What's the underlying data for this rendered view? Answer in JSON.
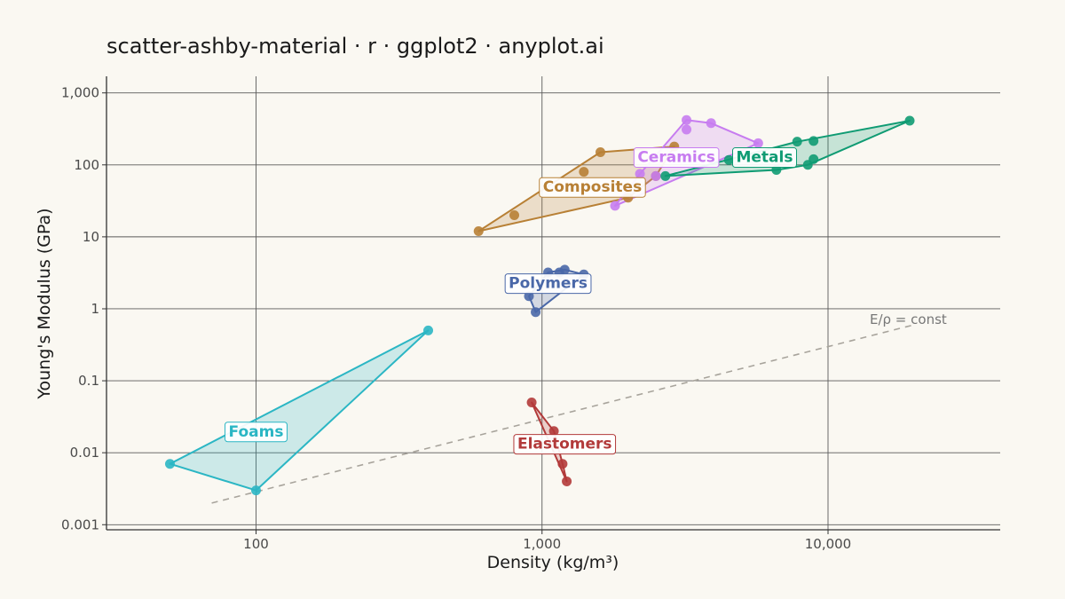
{
  "chart_data": {
    "type": "scatter",
    "title": "scatter-ashby-material · r · ggplot2 · anyplot.ai",
    "xlabel": "Density  (kg/m³)",
    "ylabel": "Young's Modulus  (GPa)",
    "x_scale": "log10",
    "y_scale": "log10",
    "xlim": [
      30,
      40000
    ],
    "ylim": [
      0.00085,
      1700
    ],
    "x_ticks": [
      {
        "value": 100,
        "label": "100"
      },
      {
        "value": 1000,
        "label": "1,000"
      },
      {
        "value": 10000,
        "label": "10,000"
      }
    ],
    "y_ticks": [
      {
        "value": 0.001,
        "label": "0.001"
      },
      {
        "value": 0.01,
        "label": "0.01"
      },
      {
        "value": 0.1,
        "label": "0.1"
      },
      {
        "value": 1,
        "label": "1"
      },
      {
        "value": 10,
        "label": "10"
      },
      {
        "value": 100,
        "label": "100"
      },
      {
        "value": 1000,
        "label": "1,000"
      }
    ],
    "grid": true,
    "legend": "none",
    "series": [
      {
        "name": "Foams",
        "color": "#2bb6c4",
        "label_at": [
          100,
          0.02
        ],
        "points": [
          [
            50,
            0.007
          ],
          [
            100,
            0.003
          ],
          [
            400,
            0.5
          ]
        ]
      },
      {
        "name": "Elastomers",
        "color": "#b23a3a",
        "label_at": [
          1200,
          0.0135
        ],
        "points": [
          [
            920,
            0.05
          ],
          [
            1100,
            0.02
          ],
          [
            1180,
            0.007
          ],
          [
            1220,
            0.004
          ]
        ]
      },
      {
        "name": "Polymers",
        "color": "#4a68a8",
        "label_at": [
          1050,
          2.3
        ],
        "points": [
          [
            900,
            1.5
          ],
          [
            950,
            0.9
          ],
          [
            1050,
            3.2
          ],
          [
            1150,
            3.2
          ],
          [
            1200,
            3.5
          ],
          [
            1400,
            3.0
          ]
        ]
      },
      {
        "name": "Composites",
        "color": "#b88035",
        "label_at": [
          1500,
          50
        ],
        "points": [
          [
            600,
            12
          ],
          [
            800,
            20
          ],
          [
            1400,
            80
          ],
          [
            1600,
            150
          ],
          [
            2000,
            35
          ],
          [
            2500,
            70
          ],
          [
            2900,
            180
          ]
        ]
      },
      {
        "name": "Ceramics",
        "color": "#c77cf0",
        "label_at": [
          2950,
          130
        ],
        "points": [
          [
            1800,
            27
          ],
          [
            2200,
            75
          ],
          [
            2500,
            70
          ],
          [
            3200,
            420
          ],
          [
            3200,
            310
          ],
          [
            3900,
            380
          ],
          [
            5700,
            200
          ]
        ]
      },
      {
        "name": "Metals",
        "color": "#0f9b73",
        "label_at": [
          6000,
          130
        ],
        "points": [
          [
            2700,
            70
          ],
          [
            4500,
            117
          ],
          [
            6600,
            85
          ],
          [
            7800,
            210
          ],
          [
            8500,
            100
          ],
          [
            8900,
            215
          ],
          [
            8900,
            120
          ],
          [
            19300,
            411
          ]
        ]
      }
    ],
    "reference_line": {
      "label": "E/ρ = const",
      "style": "dashed",
      "color": "#a8a49c",
      "points": [
        [
          70,
          0.002
        ],
        [
          20000,
          0.6
        ]
      ]
    }
  }
}
